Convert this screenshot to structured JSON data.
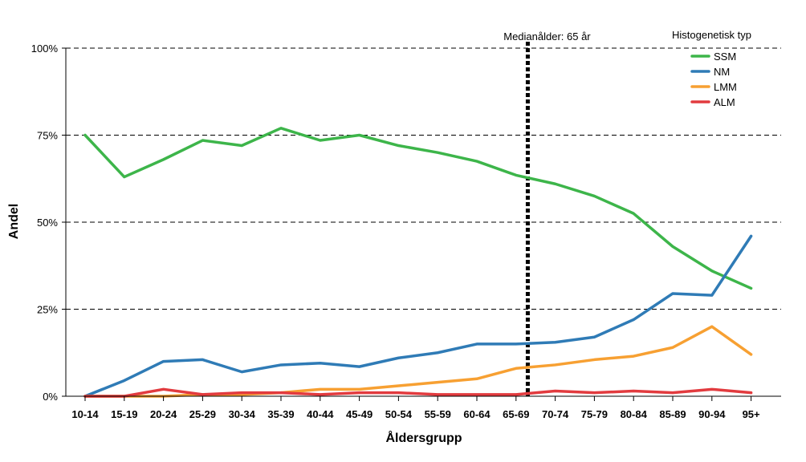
{
  "chart_data": {
    "type": "line",
    "categories": [
      "10-14",
      "15-19",
      "20-24",
      "25-29",
      "30-34",
      "35-39",
      "40-44",
      "45-49",
      "50-54",
      "55-59",
      "60-64",
      "65-69",
      "70-74",
      "75-79",
      "80-84",
      "85-89",
      "90-94",
      "95+"
    ],
    "x_tick_labels": [
      "10-14",
      "15-19",
      "20-24",
      "25-29",
      "30-34",
      "35-39",
      "40-44",
      "45-49",
      "50-54",
      "55-59",
      "60-64",
      "65-69",
      "70-74",
      "75-79",
      "80-84",
      "85-89",
      "90-94",
      "95+"
    ],
    "series": [
      {
        "name": "SSM",
        "color": "#3db54a",
        "values": [
          75.0,
          63.0,
          68.0,
          73.5,
          72.0,
          77.0,
          73.5,
          75.0,
          72.0,
          70.0,
          67.5,
          63.5,
          61.0,
          57.5,
          52.5,
          43.0,
          36.0,
          31.0
        ]
      },
      {
        "name": "NM",
        "color": "#2f7bb6",
        "values": [
          0.0,
          4.5,
          10.0,
          10.5,
          7.0,
          9.0,
          9.5,
          8.5,
          11.0,
          12.5,
          15.0,
          15.0,
          15.5,
          17.0,
          22.0,
          29.5,
          29.0,
          46.0
        ]
      },
      {
        "name": "LMM",
        "color": "#f7a032",
        "values": [
          0.0,
          0.0,
          0.0,
          0.5,
          0.5,
          1.0,
          2.0,
          2.0,
          3.0,
          4.0,
          5.0,
          8.0,
          9.0,
          10.5,
          11.5,
          14.0,
          20.0,
          12.0
        ]
      },
      {
        "name": "ALM",
        "color": "#e23b3f",
        "values": [
          0.0,
          0.0,
          2.0,
          0.5,
          1.0,
          1.0,
          0.5,
          1.0,
          1.0,
          0.5,
          0.5,
          0.5,
          1.5,
          1.0,
          1.5,
          1.0,
          2.0,
          1.0
        ]
      }
    ],
    "xlabel": "Åldersgrupp",
    "ylabel": "Andel",
    "ylim": [
      0,
      100
    ],
    "y_ticks": [
      0,
      25,
      50,
      75,
      100
    ],
    "y_tick_labels": [
      "0%",
      "25%",
      "50%",
      "75%",
      "100%"
    ],
    "legend": {
      "title": "Histogenetisk typ",
      "position": "top-right",
      "items": [
        "SSM",
        "NM",
        "LMM",
        "ALM"
      ]
    },
    "reference_line": {
      "x_category_position": 11.3,
      "label": "Medianålder: 65 år",
      "style": "dotted",
      "color": "#000000"
    },
    "grid": {
      "y_major": true,
      "style": "dashed"
    }
  }
}
